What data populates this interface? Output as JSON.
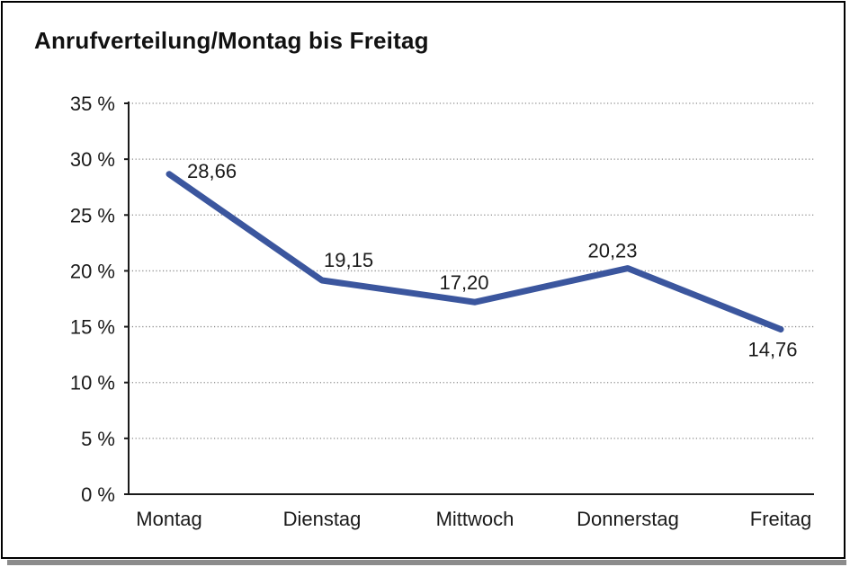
{
  "title": "Anrufverteilung/Montag bis Freitag",
  "frame": {
    "border_color": "#000000",
    "shadow_color": "#8c8c8c",
    "background": "#ffffff"
  },
  "chart_data": {
    "type": "line",
    "title": "Anrufverteilung/Montag bis Freitag",
    "categories": [
      "Montag",
      "Dienstag",
      "Mittwoch",
      "Donnerstag",
      "Freitag"
    ],
    "values": [
      28.66,
      19.15,
      17.2,
      20.23,
      14.76
    ],
    "data_labels": [
      "28,66",
      "19,15",
      "17,20",
      "20,23",
      "14,76"
    ],
    "series_name": "Anrufverteilung",
    "xlabel": "",
    "ylabel": "",
    "ylim": [
      0,
      35
    ],
    "ytick_step": 5,
    "ytick_labels": [
      "0 %",
      "5 %",
      "10 %",
      "15 %",
      "20 %",
      "25 %",
      "30 %",
      "35 %"
    ],
    "grid": "horizontal-dotted",
    "legend": "none",
    "line_color": "#3B569E",
    "grid_color": "#8a8a8a",
    "axis_color": "#1a1a1a",
    "label_color": "#1a1a1a"
  }
}
